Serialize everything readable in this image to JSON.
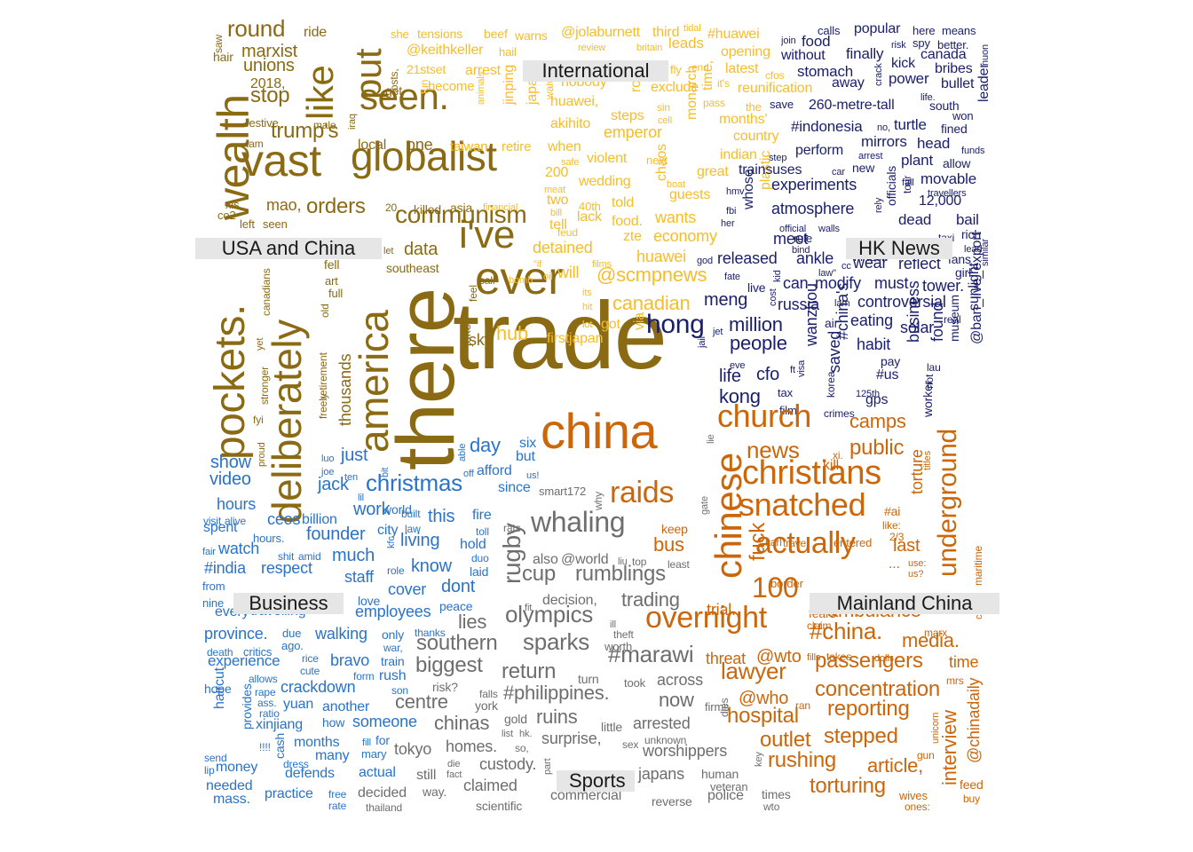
{
  "colors": {
    "usa_china": "#8b6a14",
    "international": "#f5bd2b",
    "hk_news": "#1a1f6b",
    "business": "#2a73c9",
    "sports": "#6e6e6e",
    "mainland_china": "#cc660a"
  },
  "group_labels": [
    {
      "id": "usa_china",
      "text": "USA and China"
    },
    {
      "id": "international",
      "text": "International"
    },
    {
      "id": "hk_news",
      "text": "HK News"
    },
    {
      "id": "business",
      "text": "Business"
    },
    {
      "id": "sports",
      "text": "Sports"
    },
    {
      "id": "mainland_china",
      "text": "Mainland China"
    }
  ],
  "words": {
    "usa_china": [
      "trade",
      "there",
      "pockets.",
      "deliberately",
      "america",
      "wealth",
      "vast",
      "globalist",
      "like",
      "put",
      "seen.",
      "ever",
      "i've",
      "communism",
      "trump's",
      "stop",
      "round",
      "marxist",
      "unions",
      "2018,",
      "orders",
      "mao,",
      "data",
      "southeast",
      "thousands",
      "retirement",
      "freely",
      "stronger",
      "canadians",
      "yet",
      "sky",
      "jokes",
      "one",
      "killed",
      "asia",
      "local",
      "festive",
      "tam",
      "hair",
      "saw",
      "ride",
      "xis",
      "co2",
      "left",
      "seen",
      "bts",
      "fell",
      "art",
      "full",
      "old",
      "sales",
      "let",
      "call",
      "feel",
      "20,",
      "iraq",
      "male",
      "get",
      "costs,",
      "fyi",
      "proud"
    ],
    "international": [
      "@jolaburnett",
      "third",
      "tidal",
      "#huawei",
      "taiwan",
      "@keithkeller",
      "hail",
      "she",
      "tensions",
      "beef",
      "warns",
      "leads",
      "britain",
      "review",
      "opening",
      "latest",
      "21stset",
      "arrest",
      "become",
      "fun",
      "jinping",
      "japan's",
      "animals",
      "waive",
      "roll-",
      "exclude",
      "monarch",
      "chaos",
      "time,",
      "months'",
      "country",
      "indian",
      "wedding",
      "violent",
      "next",
      "retire",
      "when",
      "taiwan",
      "200",
      "two",
      "lack",
      "40th",
      "told",
      "food.",
      "feud",
      "wants",
      "economy",
      "detained",
      "will",
      "firstjapan",
      "got",
      "via",
      "zte",
      "huawei",
      "canadian",
      "@scmpnews",
      "hub",
      "akihito",
      "emperor",
      "steps",
      "reunification",
      "cfos",
      "fly",
      "end",
      "it's",
      "pass",
      "the",
      "sin",
      "cell",
      "lot",
      "safe",
      "meat",
      "bill",
      "financial",
      "boat",
      "nobody",
      "huawei,",
      "guests",
      "great",
      "plastic",
      "\"if",
      "films",
      "oil",
      "bomb",
      "its",
      "hit",
      "lot",
      "tell"
    ],
    "hk_news": [
      "hong",
      "meng",
      "million",
      "people",
      "cfo",
      "life",
      "kong",
      "wanzhou",
      "#china's",
      "saved",
      "habit",
      "#us",
      "gps",
      "russia",
      "can",
      "modify",
      "must",
      "released",
      "meet",
      "ankle",
      "wear",
      "reflect",
      "tower.",
      "fans",
      "girl",
      "controversial",
      "eating",
      "solar",
      "sunlight",
      "found",
      "museum",
      "business",
      "worker",
      "@ban_live_export",
      "experiments",
      "atmosphere",
      "trainsuses",
      "perform",
      "#indonesia",
      "turtle",
      "mirrors",
      "head",
      "plant",
      "allow",
      "movable",
      "dead",
      "12,000",
      "bail",
      "rich",
      "lead",
      "similar",
      "fined",
      "south",
      "won",
      "leader",
      "bullet",
      "bribes",
      "canada",
      "popular",
      "here",
      "means",
      "spy",
      "better.",
      "kick",
      "power",
      "finally",
      "nuon",
      "food",
      "without",
      "stomach",
      "260-metre-tall",
      "away",
      "crack",
      "calls",
      "join",
      "save",
      "whose",
      "officials",
      "new",
      "arrest",
      "tour",
      "fall",
      "step",
      "car",
      "rely",
      "fbi",
      "her",
      "hmv",
      "official",
      "walls",
      "rule",
      "bind",
      "law\"",
      "hi-tech",
      "cc",
      "god",
      "fate",
      "kid",
      "live",
      "cost",
      "lam",
      "air",
      "jet",
      "jail",
      "eve",
      "tax",
      "film",
      "visa",
      "ft",
      "korea",
      "crimes",
      "125th",
      "pay",
      "lau",
      "real",
      "not",
      "travellers",
      "risk",
      "no,",
      "life.",
      "taxi",
      "funds"
    ],
    "business": [
      "christmas",
      "day",
      "just",
      "jack",
      "work",
      "this",
      "world",
      "living",
      "know",
      "founder",
      "ceos",
      "billion",
      "city",
      "much",
      "staff",
      "respect",
      "#india",
      "watch",
      "spent",
      "hours",
      "video",
      "show",
      "visit",
      "alive",
      "hours.",
      "shit",
      "amid",
      "cover",
      "dont",
      "peace",
      "love",
      "employees",
      "every",
      "travelling",
      "province.",
      "walking",
      "bravo",
      "experience",
      "critics",
      "due",
      "ago.",
      "death",
      "rice",
      "cute",
      "crackdown",
      "train",
      "rush",
      "yuan",
      "another",
      "someone",
      "xinjiang",
      "how",
      "months",
      "many",
      "mary",
      "fill",
      "defends",
      "actual",
      "practice",
      "free",
      "rate",
      "needed",
      "mass.",
      "money",
      "cash",
      "provides",
      "haircut",
      "allows",
      "rape",
      "ass.",
      "ratio",
      "hope",
      "send",
      "lip",
      "dress",
      "!!!!",
      "for",
      "son",
      "form",
      "war,",
      "only",
      "thanks",
      "hold",
      "laid",
      "fire",
      "toll",
      "duo",
      "role",
      "kfc",
      "law",
      "built",
      "ten",
      "luo",
      "joe",
      "lil",
      "bit",
      "fair",
      "from",
      "nine",
      "able",
      "off",
      "afford",
      "us!",
      "since",
      "six",
      "but"
    ],
    "sports": [
      "whaling",
      "rugby",
      "cup",
      "rumblings",
      "trading",
      "olympics",
      "lies",
      "southern",
      "sparks",
      "biggest",
      "return",
      "centre",
      "chinas",
      "homes.",
      "tokyo",
      "custody.",
      "still",
      "claimed",
      "way.",
      "decided",
      "thailand",
      "scientific",
      "commercial",
      "reverse",
      "police",
      "times",
      "wto",
      "human",
      "veteran",
      "japans",
      "worshippers",
      "surprise,",
      "ruins",
      "#philippines.",
      "arrested",
      "now",
      "across",
      "#marawi",
      "decision,",
      "also",
      "@world",
      "top",
      "liu",
      "least",
      "fit",
      "ill",
      "theft",
      "worth",
      "took",
      "turn",
      "risk?",
      "falls",
      "york",
      "gold",
      "list",
      "hk.",
      "so,",
      "fact",
      "die",
      "part",
      "little",
      "unknown",
      "sex",
      "dies",
      "firms",
      "key",
      "smart172",
      "why",
      "rats",
      "gate",
      "lie"
    ],
    "mainland_china": [
      "china",
      "chinese",
      "church",
      "christians",
      "snatched",
      "actually",
      "underground",
      "raids",
      "overnight",
      "100",
      "fuck",
      "news",
      "public",
      "camps",
      "kill",
      "xi.",
      "torture",
      "last",
      "#ai",
      "like:",
      "2/3",
      "use:",
      "us?",
      "...",
      "bus",
      "keep",
      "trial.",
      "#china.",
      "ambulance",
      "media.",
      "@wto",
      "threat",
      "passengers",
      "lawyer",
      "@who",
      "concentration",
      "reporting",
      "hospital",
      "stepped",
      "outlet",
      "rushing",
      "article,",
      "torturing",
      "interview",
      "@chinadaily",
      "feed",
      "buy",
      "time",
      "mrs",
      "gun",
      "unicorn",
      "wives",
      "ones:",
      "dolls",
      "fills",
      "takes",
      "marx",
      "claim",
      "fears",
      "border",
      "karl",
      "travel",
      "entered",
      "ran",
      "maritime",
      "titles",
      "china."
    ]
  }
}
